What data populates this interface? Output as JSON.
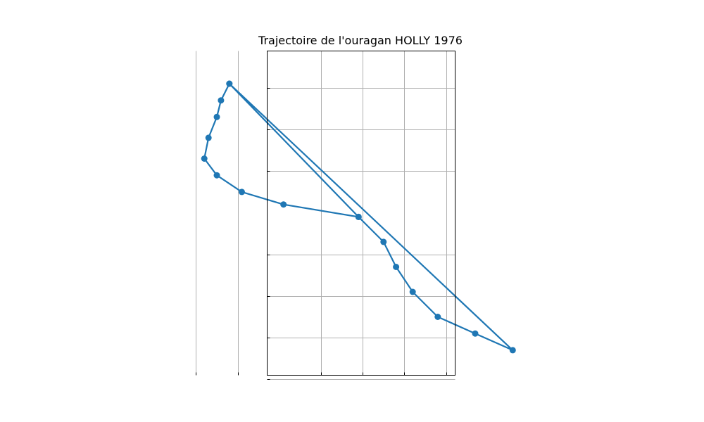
{
  "chart_data": {
    "type": "line",
    "title": "Trajectoire de l'ouragan HOLLY 1976",
    "xlabel": "",
    "ylabel": "",
    "grid": true,
    "axis_tick_labels_visible": false,
    "series": [
      {
        "color": "#1f77b4",
        "marker": "circle",
        "x": [
          -55.2,
          -55.4,
          -55.5,
          -55.7,
          -55.8,
          -55.5,
          -54.9,
          -53.9,
          -52.1,
          -51.5,
          -51.2,
          -50.8,
          -50.2,
          -49.3,
          -48.4,
          -55.2,
          -52.1
        ],
        "y": [
          35.1,
          34.7,
          34.3,
          33.8,
          33.3,
          32.9,
          32.5,
          32.2,
          31.9,
          31.3,
          30.7,
          30.1,
          29.5,
          29.1,
          28.7,
          35.1,
          31.9
        ]
      }
    ]
  }
}
